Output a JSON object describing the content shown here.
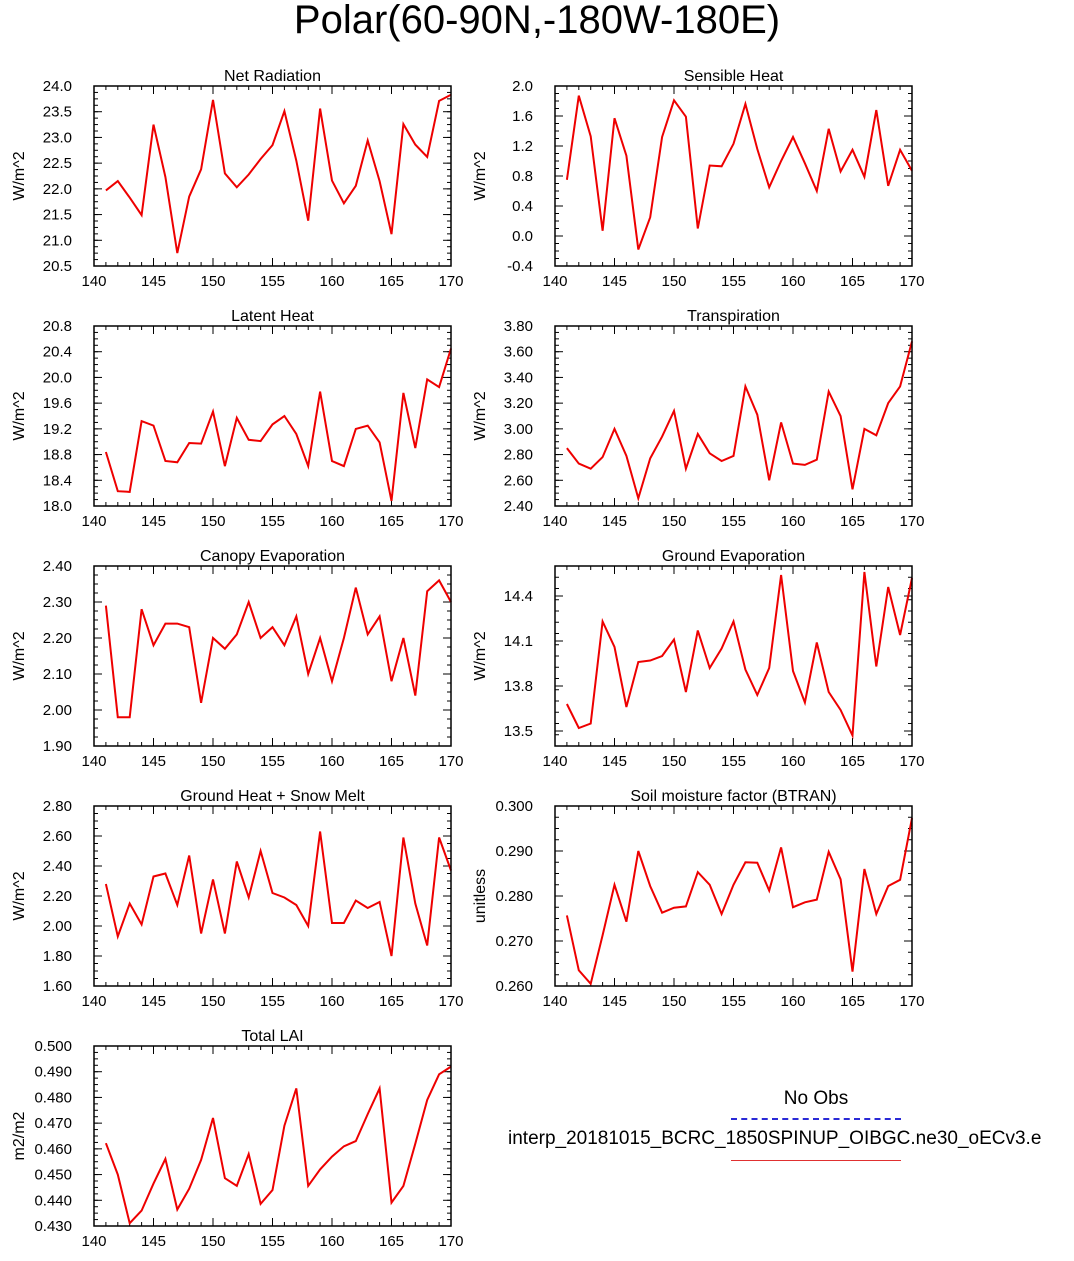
{
  "title": "Polar(60-90N,-180W-180E)",
  "colors": {
    "series": "#ee0000",
    "obs": "#2a2ad6",
    "axis": "#000000"
  },
  "legend": {
    "obs_label": "No Obs",
    "model_label": "interp_20181015_BCRC_1850SPINUP_OIBGC.ne30_oECv3.e"
  },
  "chart_data": [
    {
      "type": "line",
      "title": "Net Radiation",
      "ylabel": "W/m^2",
      "xlim": [
        140,
        170
      ],
      "xticks": [
        "140",
        "145",
        "150",
        "155",
        "160",
        "165",
        "170"
      ],
      "ylim": [
        20.5,
        24.0
      ],
      "yticks": [
        "20.5",
        "21.0",
        "21.5",
        "22.0",
        "22.5",
        "23.0",
        "23.5",
        "24.0"
      ],
      "x": [
        141,
        142,
        143,
        144,
        145,
        146,
        147,
        148,
        149,
        150,
        151,
        152,
        153,
        154,
        155,
        156,
        157,
        158,
        159,
        160,
        161,
        162,
        163,
        164,
        165,
        166,
        167,
        168,
        169,
        170
      ],
      "values": [
        21.97,
        22.15,
        21.83,
        21.49,
        23.25,
        22.23,
        20.75,
        21.85,
        22.38,
        23.73,
        22.3,
        22.03,
        22.28,
        22.58,
        22.85,
        23.51,
        22.55,
        21.38,
        23.56,
        22.16,
        21.72,
        22.06,
        22.94,
        22.15,
        21.12,
        23.26,
        22.86,
        22.62,
        23.71,
        23.83
      ]
    },
    {
      "type": "line",
      "title": "Sensible Heat",
      "ylabel": "W/m^2",
      "xlim": [
        140,
        170
      ],
      "xticks": [
        "140",
        "145",
        "150",
        "155",
        "160",
        "165",
        "170"
      ],
      "ylim": [
        -0.4,
        2.0
      ],
      "yticks": [
        "-0.4",
        "0.0",
        "0.4",
        "0.8",
        "1.2",
        "1.6",
        "2.0"
      ],
      "x": [
        141,
        142,
        143,
        144,
        145,
        146,
        147,
        148,
        149,
        150,
        151,
        152,
        153,
        154,
        155,
        156,
        157,
        158,
        159,
        160,
        161,
        162,
        163,
        164,
        165,
        166,
        167,
        168,
        169,
        170
      ],
      "values": [
        0.75,
        1.87,
        1.33,
        0.07,
        1.57,
        1.07,
        -0.18,
        0.25,
        1.32,
        1.81,
        1.59,
        0.1,
        0.94,
        0.93,
        1.23,
        1.76,
        1.16,
        0.65,
        1.0,
        1.32,
        0.97,
        0.6,
        1.43,
        0.86,
        1.15,
        0.79,
        1.68,
        0.67,
        1.15,
        0.87
      ]
    },
    {
      "type": "line",
      "title": "Latent Heat",
      "ylabel": "W/m^2",
      "xlim": [
        140,
        170
      ],
      "xticks": [
        "140",
        "145",
        "150",
        "155",
        "160",
        "165",
        "170"
      ],
      "ylim": [
        18.0,
        20.8
      ],
      "yticks": [
        "18.0",
        "18.4",
        "18.8",
        "19.2",
        "19.6",
        "20.0",
        "20.4",
        "20.8"
      ],
      "x": [
        141,
        142,
        143,
        144,
        145,
        146,
        147,
        148,
        149,
        150,
        151,
        152,
        153,
        154,
        155,
        156,
        157,
        158,
        159,
        160,
        161,
        162,
        163,
        164,
        165,
        166,
        167,
        168,
        169,
        170
      ],
      "values": [
        18.84,
        18.23,
        18.22,
        19.32,
        19.25,
        18.7,
        18.68,
        18.98,
        18.97,
        19.47,
        18.62,
        19.37,
        19.03,
        19.01,
        19.27,
        19.4,
        19.12,
        18.62,
        19.78,
        18.7,
        18.62,
        19.2,
        19.25,
        18.99,
        18.08,
        19.76,
        18.9,
        19.97,
        19.85,
        20.45
      ]
    },
    {
      "type": "line",
      "title": "Transpiration",
      "ylabel": "W/m^2",
      "xlim": [
        140,
        170
      ],
      "xticks": [
        "140",
        "145",
        "150",
        "155",
        "160",
        "165",
        "170"
      ],
      "ylim": [
        2.4,
        3.8
      ],
      "yticks": [
        "2.40",
        "2.60",
        "2.80",
        "3.00",
        "3.20",
        "3.40",
        "3.60",
        "3.80"
      ],
      "x": [
        141,
        142,
        143,
        144,
        145,
        146,
        147,
        148,
        149,
        150,
        151,
        152,
        153,
        154,
        155,
        156,
        157,
        158,
        159,
        160,
        161,
        162,
        163,
        164,
        165,
        166,
        167,
        168,
        169,
        170
      ],
      "values": [
        2.85,
        2.73,
        2.69,
        2.78,
        3.0,
        2.79,
        2.46,
        2.77,
        2.94,
        3.14,
        2.69,
        2.96,
        2.81,
        2.75,
        2.79,
        3.33,
        3.11,
        2.6,
        3.05,
        2.73,
        2.72,
        2.76,
        3.29,
        3.1,
        2.53,
        3.0,
        2.95,
        3.2,
        3.33,
        3.68
      ]
    },
    {
      "type": "line",
      "title": "Canopy Evaporation",
      "ylabel": "W/m^2",
      "xlim": [
        140,
        170
      ],
      "xticks": [
        "140",
        "145",
        "150",
        "155",
        "160",
        "165",
        "170"
      ],
      "ylim": [
        1.9,
        2.4
      ],
      "yticks": [
        "1.90",
        "2.00",
        "2.10",
        "2.20",
        "2.30",
        "2.40"
      ],
      "x": [
        141,
        142,
        143,
        144,
        145,
        146,
        147,
        148,
        149,
        150,
        151,
        152,
        153,
        154,
        155,
        156,
        157,
        158,
        159,
        160,
        161,
        162,
        163,
        164,
        165,
        166,
        167,
        168,
        169,
        170
      ],
      "values": [
        2.29,
        1.98,
        1.98,
        2.28,
        2.18,
        2.24,
        2.24,
        2.23,
        2.02,
        2.2,
        2.17,
        2.21,
        2.3,
        2.2,
        2.23,
        2.18,
        2.26,
        2.1,
        2.2,
        2.08,
        2.2,
        2.34,
        2.21,
        2.26,
        2.08,
        2.2,
        2.04,
        2.33,
        2.36,
        2.3
      ]
    },
    {
      "type": "line",
      "title": "Ground Evaporation",
      "ylabel": "W/m^2",
      "xlim": [
        140,
        170
      ],
      "xticks": [
        "140",
        "145",
        "150",
        "155",
        "160",
        "165",
        "170"
      ],
      "ylim": [
        13.4,
        14.6
      ],
      "yticks": [
        "13.5",
        "13.8",
        "14.1",
        "14.4"
      ],
      "x": [
        141,
        142,
        143,
        144,
        145,
        146,
        147,
        148,
        149,
        150,
        151,
        152,
        153,
        154,
        155,
        156,
        157,
        158,
        159,
        160,
        161,
        162,
        163,
        164,
        165,
        166,
        167,
        168,
        169,
        170
      ],
      "values": [
        13.68,
        13.52,
        13.55,
        14.23,
        14.06,
        13.66,
        13.96,
        13.97,
        14.0,
        14.11,
        13.76,
        14.17,
        13.92,
        14.05,
        14.23,
        13.91,
        13.74,
        13.92,
        14.54,
        13.9,
        13.69,
        14.09,
        13.76,
        13.64,
        13.47,
        14.56,
        13.93,
        14.46,
        14.14,
        14.52
      ]
    },
    {
      "type": "line",
      "title": "Ground Heat + Snow Melt",
      "ylabel": "W/m^2",
      "xlim": [
        140,
        170
      ],
      "xticks": [
        "140",
        "145",
        "150",
        "155",
        "160",
        "165",
        "170"
      ],
      "ylim": [
        1.6,
        2.8
      ],
      "yticks": [
        "1.60",
        "1.80",
        "2.00",
        "2.20",
        "2.40",
        "2.60",
        "2.80"
      ],
      "x": [
        141,
        142,
        143,
        144,
        145,
        146,
        147,
        148,
        149,
        150,
        151,
        152,
        153,
        154,
        155,
        156,
        157,
        158,
        159,
        160,
        161,
        162,
        163,
        164,
        165,
        166,
        167,
        168,
        169,
        170
      ],
      "values": [
        2.28,
        1.93,
        2.15,
        2.01,
        2.33,
        2.35,
        2.14,
        2.47,
        1.95,
        2.31,
        1.95,
        2.43,
        2.19,
        2.5,
        2.22,
        2.19,
        2.14,
        2.0,
        2.63,
        2.02,
        2.02,
        2.17,
        2.12,
        2.16,
        1.8,
        2.59,
        2.15,
        1.87,
        2.59,
        2.37
      ]
    },
    {
      "type": "line",
      "title": "Soil moisture factor (BTRAN)",
      "ylabel": "unitless",
      "xlim": [
        140,
        170
      ],
      "xticks": [
        "140",
        "145",
        "150",
        "155",
        "160",
        "165",
        "170"
      ],
      "ylim": [
        0.26,
        0.3
      ],
      "yticks": [
        "0.260",
        "0.270",
        "0.280",
        "0.290",
        "0.300"
      ],
      "x": [
        141,
        142,
        143,
        144,
        145,
        146,
        147,
        148,
        149,
        150,
        151,
        152,
        153,
        154,
        155,
        156,
        157,
        158,
        159,
        160,
        161,
        162,
        163,
        164,
        165,
        166,
        167,
        168,
        169,
        170
      ],
      "values": [
        0.2757,
        0.2635,
        0.2605,
        0.2713,
        0.2825,
        0.2743,
        0.29,
        0.2822,
        0.2763,
        0.2774,
        0.2777,
        0.2853,
        0.2825,
        0.276,
        0.2825,
        0.2875,
        0.2874,
        0.2812,
        0.2908,
        0.2775,
        0.2786,
        0.2792,
        0.2898,
        0.2837,
        0.2632,
        0.286,
        0.276,
        0.2822,
        0.2836,
        0.2973
      ]
    },
    {
      "type": "line",
      "title": "Total LAI",
      "ylabel": "m2/m2",
      "xlim": [
        140,
        170
      ],
      "xticks": [
        "140",
        "145",
        "150",
        "155",
        "160",
        "165",
        "170"
      ],
      "ylim": [
        0.43,
        0.5
      ],
      "yticks": [
        "0.430",
        "0.440",
        "0.450",
        "0.460",
        "0.470",
        "0.480",
        "0.490",
        "0.500"
      ],
      "x": [
        141,
        142,
        143,
        144,
        145,
        146,
        147,
        148,
        149,
        150,
        151,
        152,
        153,
        154,
        155,
        156,
        157,
        158,
        159,
        160,
        161,
        162,
        163,
        164,
        165,
        166,
        167,
        168,
        169,
        170
      ],
      "values": [
        0.4622,
        0.45,
        0.4311,
        0.436,
        0.4465,
        0.4561,
        0.4364,
        0.4445,
        0.4557,
        0.472,
        0.4486,
        0.4456,
        0.458,
        0.4386,
        0.444,
        0.469,
        0.4835,
        0.4456,
        0.452,
        0.457,
        0.461,
        0.463,
        0.4735,
        0.4835,
        0.4391,
        0.4456,
        0.462,
        0.479,
        0.489,
        0.492
      ]
    }
  ]
}
